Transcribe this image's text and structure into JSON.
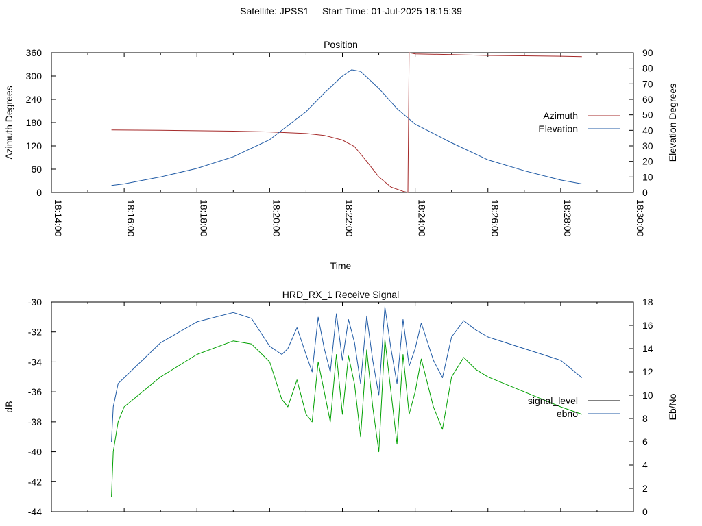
{
  "header": {
    "satellite": "Satellite: JPSS1",
    "start_time": "Start Time: 01-Jul-2025 18:15:39"
  },
  "chart_data": [
    {
      "type": "line",
      "title": "Position",
      "xlabel": "Time",
      "ylabel": "Azimuth Degrees",
      "y2label": "Elevation Degrees",
      "xlim": [
        "18:14:00",
        "18:30:00"
      ],
      "ylim": [
        0,
        360
      ],
      "y2lim": [
        0,
        90
      ],
      "xticks": [
        "18:14:00",
        "18:16:00",
        "18:18:00",
        "18:20:00",
        "18:22:00",
        "18:24:00",
        "18:26:00",
        "18:28:00",
        "18:30:00"
      ],
      "yticks": [
        0,
        60,
        120,
        180,
        240,
        300,
        360
      ],
      "y2ticks": [
        0,
        10,
        20,
        30,
        40,
        50,
        60,
        70,
        80,
        90
      ],
      "legend_position": "right",
      "grid": false,
      "series": [
        {
          "name": "Azimuth",
          "axis": "left",
          "color": "#a52a2a",
          "points": [
            [
              "18:15:39",
              161
            ],
            [
              "18:17:00",
              160
            ],
            [
              "18:19:00",
              158
            ],
            [
              "18:20:00",
              156
            ],
            [
              "18:21:00",
              152
            ],
            [
              "18:21:30",
              147
            ],
            [
              "18:22:00",
              135
            ],
            [
              "18:22:20",
              118
            ],
            [
              "18:22:40",
              80
            ],
            [
              "18:23:00",
              40
            ],
            [
              "18:23:20",
              14
            ],
            [
              "18:23:40",
              3
            ],
            [
              "18:23:48",
              0
            ],
            [
              "18:23:50",
              360
            ],
            [
              "18:24:00",
              357
            ],
            [
              "18:25:00",
              355
            ],
            [
              "18:26:00",
              353
            ],
            [
              "18:27:00",
              352
            ],
            [
              "18:28:00",
              351
            ],
            [
              "18:28:35",
              350
            ]
          ]
        },
        {
          "name": "Elevation",
          "axis": "right",
          "color": "#1f5aa5",
          "points": [
            [
              "18:15:39",
              4.5
            ],
            [
              "18:16:00",
              5.5
            ],
            [
              "18:17:00",
              10
            ],
            [
              "18:18:00",
              15.5
            ],
            [
              "18:19:00",
              23
            ],
            [
              "18:20:00",
              34
            ],
            [
              "18:21:00",
              52
            ],
            [
              "18:21:30",
              64
            ],
            [
              "18:22:00",
              75
            ],
            [
              "18:22:15",
              79
            ],
            [
              "18:22:30",
              78
            ],
            [
              "18:23:00",
              67
            ],
            [
              "18:23:30",
              54
            ],
            [
              "18:24:00",
              44
            ],
            [
              "18:25:00",
              32
            ],
            [
              "18:26:00",
              21
            ],
            [
              "18:27:00",
              14
            ],
            [
              "18:28:00",
              8
            ],
            [
              "18:28:35",
              5.5
            ]
          ]
        }
      ]
    },
    {
      "type": "line",
      "title": "HRD_RX_1 Receive Signal",
      "xlabel": "",
      "ylabel": "dB",
      "y2label": "Eb/No",
      "xlim": [
        "18:14:00",
        "18:30:00"
      ],
      "ylim": [
        -44,
        -30
      ],
      "y2lim": [
        0,
        18
      ],
      "yticks": [
        -44,
        -42,
        -40,
        -38,
        -36,
        -34,
        -32,
        -30
      ],
      "y2ticks": [
        0,
        2,
        4,
        6,
        8,
        10,
        12,
        14,
        16,
        18
      ],
      "legend_position": "right",
      "grid": false,
      "series": [
        {
          "name": "signal_level",
          "axis": "left",
          "color": "#00a000",
          "points": [
            [
              "18:15:39",
              -43
            ],
            [
              "18:15:42",
              -40
            ],
            [
              "18:15:50",
              -38
            ],
            [
              "18:16:00",
              -37
            ],
            [
              "18:17:00",
              -35
            ],
            [
              "18:18:00",
              -33.5
            ],
            [
              "18:19:00",
              -32.6
            ],
            [
              "18:19:30",
              -32.8
            ],
            [
              "18:20:00",
              -34
            ],
            [
              "18:20:20",
              -36.5
            ],
            [
              "18:20:30",
              -37
            ],
            [
              "18:20:45",
              -35.2
            ],
            [
              "18:21:00",
              -37.5
            ],
            [
              "18:21:10",
              -38
            ],
            [
              "18:21:20",
              -34
            ],
            [
              "18:21:30",
              -36
            ],
            [
              "18:21:40",
              -38
            ],
            [
              "18:21:50",
              -33.5
            ],
            [
              "18:22:00",
              -37.5
            ],
            [
              "18:22:10",
              -33.6
            ],
            [
              "18:22:20",
              -35.5
            ],
            [
              "18:22:30",
              -39
            ],
            [
              "18:22:40",
              -33.2
            ],
            [
              "18:22:50",
              -37
            ],
            [
              "18:23:00",
              -40
            ],
            [
              "18:23:10",
              -32.5
            ],
            [
              "18:23:20",
              -36
            ],
            [
              "18:23:30",
              -39.5
            ],
            [
              "18:23:40",
              -33.5
            ],
            [
              "18:23:50",
              -37.5
            ],
            [
              "18:24:00",
              -36
            ],
            [
              "18:24:10",
              -33.8
            ],
            [
              "18:24:30",
              -37
            ],
            [
              "18:24:45",
              -38.5
            ],
            [
              "18:25:00",
              -35
            ],
            [
              "18:25:20",
              -33.7
            ],
            [
              "18:25:40",
              -34.5
            ],
            [
              "18:26:00",
              -35
            ],
            [
              "18:27:00",
              -36
            ],
            [
              "18:28:00",
              -37
            ],
            [
              "18:28:35",
              -37.5
            ]
          ]
        },
        {
          "name": "ebno",
          "axis": "right",
          "color": "#1f5aa5",
          "points": [
            [
              "18:15:39",
              6
            ],
            [
              "18:15:42",
              9
            ],
            [
              "18:15:50",
              11
            ],
            [
              "18:16:00",
              11.5
            ],
            [
              "18:17:00",
              14.5
            ],
            [
              "18:18:00",
              16.3
            ],
            [
              "18:19:00",
              17.1
            ],
            [
              "18:19:30",
              16.6
            ],
            [
              "18:20:00",
              14.2
            ],
            [
              "18:20:20",
              13.5
            ],
            [
              "18:20:30",
              14
            ],
            [
              "18:20:45",
              15.8
            ],
            [
              "18:21:00",
              13.5
            ],
            [
              "18:21:10",
              12
            ],
            [
              "18:21:20",
              16.7
            ],
            [
              "18:21:30",
              14
            ],
            [
              "18:21:40",
              12
            ],
            [
              "18:21:50",
              17
            ],
            [
              "18:22:00",
              13
            ],
            [
              "18:22:10",
              16.5
            ],
            [
              "18:22:20",
              14.5
            ],
            [
              "18:22:30",
              11
            ],
            [
              "18:22:40",
              16.8
            ],
            [
              "18:22:50",
              13
            ],
            [
              "18:23:00",
              10
            ],
            [
              "18:23:10",
              17.6
            ],
            [
              "18:23:20",
              14
            ],
            [
              "18:23:30",
              11
            ],
            [
              "18:23:40",
              16.5
            ],
            [
              "18:23:50",
              12.5
            ],
            [
              "18:24:00",
              14
            ],
            [
              "18:24:10",
              16.2
            ],
            [
              "18:24:30",
              13
            ],
            [
              "18:24:45",
              11.5
            ],
            [
              "18:25:00",
              15
            ],
            [
              "18:25:20",
              16.4
            ],
            [
              "18:25:40",
              15.6
            ],
            [
              "18:26:00",
              15
            ],
            [
              "18:27:00",
              14
            ],
            [
              "18:28:00",
              13
            ],
            [
              "18:28:35",
              11.5
            ]
          ]
        }
      ]
    }
  ]
}
